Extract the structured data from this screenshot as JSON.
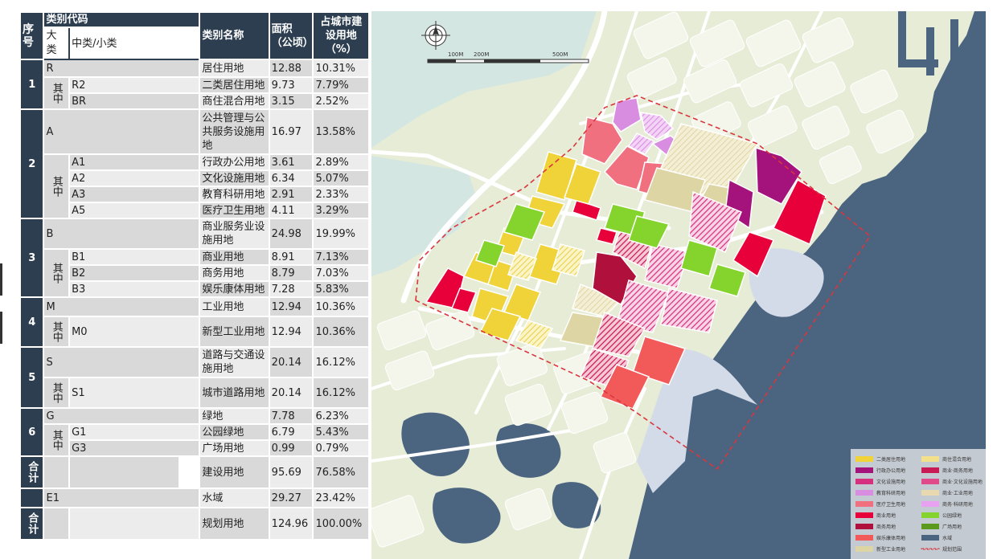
{
  "table": {
    "header": {
      "seq": "序号",
      "code": "类别代码",
      "major": "大类",
      "minor": "中类/小类",
      "name": "类别名称",
      "area": "面积（公顷）",
      "ratio": "占城市建设用地（%）"
    },
    "qizhong": "其中",
    "rows": [
      {
        "seq": "1",
        "major": "R",
        "name": "居住用地",
        "area": "12.88",
        "ratio": "10.31%"
      },
      {
        "minor": "R2",
        "name": "二类居住用地",
        "area": "9.73",
        "ratio": "7.79%"
      },
      {
        "minor": "BR",
        "name": "商住混合用地",
        "area": "3.15",
        "ratio": "2.52%"
      },
      {
        "seq": "2",
        "major": "A",
        "name": "公共管理与公共服务设施用地",
        "area": "16.97",
        "ratio": "13.58%"
      },
      {
        "minor": "A1",
        "name": "行政办公用地",
        "area": "3.61",
        "ratio": "2.89%"
      },
      {
        "minor": "A2",
        "name": "文化设施用地",
        "area": "6.34",
        "ratio": "5.07%"
      },
      {
        "minor": "A3",
        "name": "教育科研用地",
        "area": "2.91",
        "ratio": "2.33%"
      },
      {
        "minor": "A5",
        "name": "医疗卫生用地",
        "area": "4.11",
        "ratio": "3.29%"
      },
      {
        "seq": "3",
        "major": "B",
        "name": "商业服务业设施用地",
        "area": "24.98",
        "ratio": "19.99%"
      },
      {
        "minor": "B1",
        "name": "商业用地",
        "area": "8.91",
        "ratio": "7.13%"
      },
      {
        "minor": "B2",
        "name": "商务用地",
        "area": "8.79",
        "ratio": "7.03%"
      },
      {
        "minor": "B3",
        "name": "娱乐康体用地",
        "area": "7.28",
        "ratio": "5.83%"
      },
      {
        "seq": "4",
        "major": "M",
        "name": "工业用地",
        "area": "12.94",
        "ratio": "10.36%"
      },
      {
        "minor": "M0",
        "name": "新型工业用地",
        "area": "12.94",
        "ratio": "10.36%"
      },
      {
        "seq": "5",
        "major": "S",
        "name": "道路与交通设施用地",
        "area": "20.14",
        "ratio": "16.12%"
      },
      {
        "minor": "S1",
        "name": "城市道路用地",
        "area": "20.14",
        "ratio": "16.12%"
      },
      {
        "seq": "6",
        "major": "G",
        "name": "绿地",
        "area": "7.78",
        "ratio": "6.23%"
      },
      {
        "minor": "G1",
        "name": "公园绿地",
        "area": "6.79",
        "ratio": "5.43%"
      },
      {
        "minor": "G3",
        "name": "广场用地",
        "area": "0.99",
        "ratio": "0.79%"
      },
      {
        "seq": "合计",
        "name": "建设用地",
        "area": "95.69",
        "ratio": "76.58%"
      },
      {
        "major": "E1",
        "name": "水域",
        "area": "29.27",
        "ratio": "23.42%"
      },
      {
        "seq": "合计",
        "name": "规划用地",
        "area": "124.96",
        "ratio": "100.00%"
      }
    ]
  },
  "map": {
    "scale_labels": [
      "100M",
      "200M",
      "500M"
    ],
    "compass_label": "N",
    "colors": {
      "water": "#4b6480",
      "land": "#e6ecd6",
      "building": "#f4f6ec",
      "residential": "#efd339",
      "mixed_residential": "#f2e08a",
      "admin": "#a3137b",
      "culture": "#d6317e",
      "education": "#d98de0",
      "medical": "#f07080",
      "commercial": "#e8003a",
      "business": "#b0103c",
      "entertainment": "#f25a5a",
      "industrial": "#ddd6a4",
      "park": "#85d42e",
      "square": "#5c9a1e",
      "boundary": "#d9363e"
    },
    "legend": [
      {
        "label": "二类居住用地",
        "color": "#efd339"
      },
      {
        "label": "商住混合用地",
        "color": "#f2e08a"
      },
      {
        "label": "行政办公用地",
        "color": "#a3137b"
      },
      {
        "label": "商业·商务用地",
        "color": "#c81a55"
      },
      {
        "label": "文化设施用地",
        "color": "#d6317e"
      },
      {
        "label": "商业·文化设施用地",
        "color": "#e04a8a"
      },
      {
        "label": "教育科研用地",
        "color": "#d98de0"
      },
      {
        "label": "商业·工业用地",
        "color": "#e8d9b0"
      },
      {
        "label": "医疗卫生用地",
        "color": "#f07080"
      },
      {
        "label": "商务·科研用地",
        "color": "#e8a0f0"
      },
      {
        "label": "商业用地",
        "color": "#e8003a"
      },
      {
        "label": "公园绿地",
        "color": "#85d42e"
      },
      {
        "label": "商务用地",
        "color": "#b0103c"
      },
      {
        "label": "广场用地",
        "color": "#5c9a1e"
      },
      {
        "label": "娱乐康体用地",
        "color": "#f25a5a"
      },
      {
        "label": "水域",
        "color": "#4b6480"
      },
      {
        "label": "新型工业用地",
        "color": "#ddd6a4"
      },
      {
        "label": "规划范围",
        "color": "#d9363e"
      }
    ]
  }
}
